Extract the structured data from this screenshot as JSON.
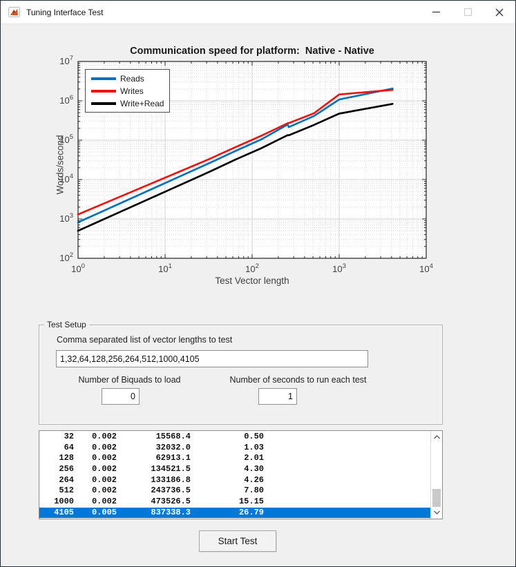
{
  "window": {
    "title": "Tuning Interface Test",
    "controls": {
      "minimize": "minimize",
      "maximize": "maximize",
      "close": "close"
    }
  },
  "chart_data": {
    "type": "line",
    "title": "Communication speed for platform:  Native - Native",
    "xlabel": "Test Vector length",
    "ylabel": "Words/second",
    "x_scale": "log",
    "y_scale": "log",
    "xlim": [
      1,
      10000
    ],
    "ylim": [
      100,
      10000000
    ],
    "grid": true,
    "legend_position": "top-left",
    "x": [
      1,
      32,
      64,
      128,
      256,
      264,
      512,
      1000,
      4105
    ],
    "series": [
      {
        "name": "Reads",
        "color": "#0072BD",
        "values": [
          820,
          26000,
          53000,
          105000,
          250000,
          215000,
          410000,
          1080000,
          2050000
        ]
      },
      {
        "name": "Writes",
        "color": "#ED1410",
        "values": [
          1300,
          33000,
          66000,
          130000,
          270000,
          272000,
          480000,
          1450000,
          1900000
        ]
      },
      {
        "name": "Write+Read",
        "color": "#000000",
        "values": [
          500,
          15568.4,
          32032.0,
          62913.1,
          134521.5,
          133186.8,
          243736.5,
          473526.5,
          837338.3
        ]
      }
    ]
  },
  "test_setup": {
    "group_label": "Test Setup",
    "vector_list_label": "Comma separated list of vector lengths to test",
    "vector_list_value": "1,32,64,128,256,264,512,1000,4105",
    "biquads_label": "Number of Biquads to load",
    "biquads_value": "0",
    "seconds_label": "Number of seconds to run each test",
    "seconds_value": "1"
  },
  "results": {
    "rows": [
      [
        "32",
        "0.002",
        "15568.4",
        "0.50"
      ],
      [
        "64",
        "0.002",
        "32032.0",
        "1.03"
      ],
      [
        "128",
        "0.002",
        "62913.1",
        "2.01"
      ],
      [
        "256",
        "0.002",
        "134521.5",
        "4.30"
      ],
      [
        "264",
        "0.002",
        "133186.8",
        "4.26"
      ],
      [
        "512",
        "0.002",
        "243736.5",
        "7.80"
      ],
      [
        "1000",
        "0.002",
        "473526.5",
        "15.15"
      ],
      [
        "4105",
        "0.005",
        "837338.3",
        "26.79"
      ]
    ],
    "selected_index": 7
  },
  "start_button_label": "Start Test",
  "colors": {
    "selection": "#0078d7",
    "figure_bg": "#f0f0f0",
    "grid_major": "#d2d2d2",
    "grid_minor": "#d9d9d9"
  }
}
